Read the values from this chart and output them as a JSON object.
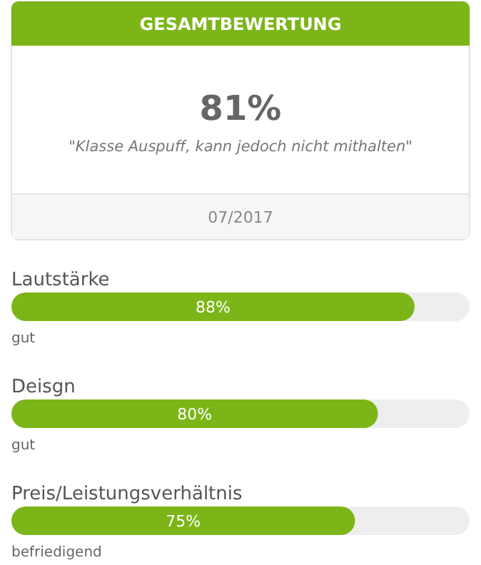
{
  "chart_data": [
    {
      "type": "other",
      "title": "GESAMTBEWERTUNG",
      "annotations": [
        "81%",
        "\"Klasse Auspuff, kann jedoch nicht mithalten\"",
        "07/2017"
      ]
    },
    {
      "type": "bar",
      "orientation": "horizontal",
      "categories": [
        "Lautstärke",
        "Deisgn",
        "Preis/Leistungsverhältnis"
      ],
      "values": [
        88,
        80,
        75
      ],
      "color": "#7cb518",
      "xlim": [
        0,
        100
      ],
      "value_labels": [
        "88%",
        "80%",
        "75%"
      ],
      "tick_labels": false,
      "annotations": [
        "gut",
        "gut",
        "befriedigend"
      ]
    }
  ]
}
